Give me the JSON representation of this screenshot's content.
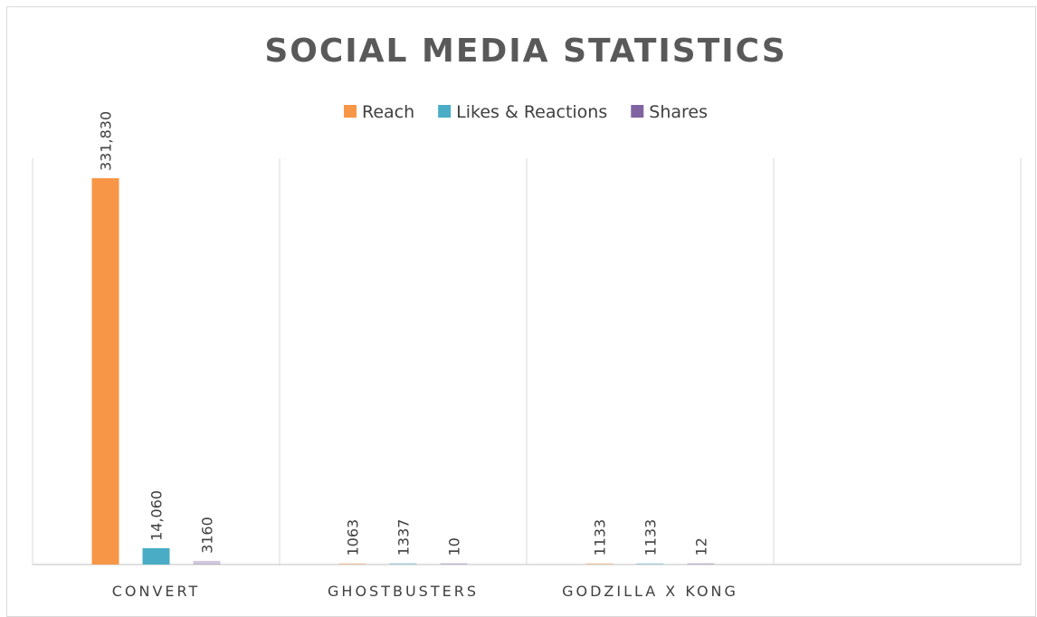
{
  "chart_data": {
    "type": "bar",
    "title": "SOCIAL MEDIA STATISTICS",
    "categories": [
      "CONVERT",
      "GHOSTBUSTERS",
      "GODZILLA X KONG",
      ""
    ],
    "series": [
      {
        "name": "Reach",
        "color": "#F79646",
        "values": [
          331830,
          1063,
          1133,
          null
        ],
        "labels": [
          "331,830",
          "1063",
          "1133",
          ""
        ]
      },
      {
        "name": "Likes & Reactions",
        "color": "#4BACC6",
        "values": [
          14060,
          1337,
          1133,
          null
        ],
        "labels": [
          "14,060",
          "1337",
          "1133",
          ""
        ]
      },
      {
        "name": "Shares",
        "color": "#8064A2",
        "values": [
          3160,
          10,
          12,
          null
        ],
        "labels": [
          "3160",
          "10",
          "12",
          ""
        ]
      }
    ],
    "ylim": [
      0,
      350000
    ],
    "legend_position": "top",
    "grid": "vertical category separators",
    "data_labels": "rotated"
  }
}
